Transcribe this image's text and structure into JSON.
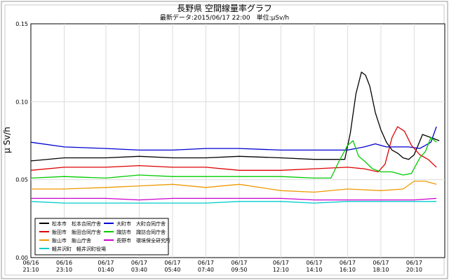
{
  "chart_data": {
    "type": "line",
    "title": "長野県 空間線量率グラフ",
    "subtitle": "最新データ:2015/06/17 22:00　単位:μSv/h",
    "ylabel": "μ Sv/h",
    "ylim": [
      0,
      0.15
    ],
    "y_ticks": [
      "0.00",
      "0.05",
      "0.10",
      "0.15"
    ],
    "y_tick_values": [
      0,
      0.05,
      0.1,
      0.15
    ],
    "x_ticks": [
      {
        "t": 0,
        "l1": "06/16",
        "l2": "21:10"
      },
      {
        "t": 120,
        "l1": "06/16",
        "l2": "23:10"
      },
      {
        "t": 270,
        "l1": "06/17",
        "l2": "01:40"
      },
      {
        "t": 390,
        "l1": "06/17",
        "l2": "03:40"
      },
      {
        "t": 510,
        "l1": "06/17",
        "l2": "05:40"
      },
      {
        "t": 630,
        "l1": "06/17",
        "l2": "07:40"
      },
      {
        "t": 750,
        "l1": "06/17",
        "l2": "09:50"
      },
      {
        "t": 900,
        "l1": "06/17",
        "l2": "12:10"
      },
      {
        "t": 1020,
        "l1": "06/17",
        "l2": "14:10"
      },
      {
        "t": 1140,
        "l1": "06/17",
        "l2": "16:10"
      },
      {
        "t": 1260,
        "l1": "06/17",
        "l2": "18:10"
      },
      {
        "t": 1380,
        "l1": "06/17",
        "l2": "20:10"
      }
    ],
    "x_range_minutes": [
      0,
      1490
    ],
    "grid": true,
    "legend_position": "bottom-left",
    "series": [
      {
        "name": "松本市　松本合同庁舎",
        "color": "#000000",
        "points": [
          [
            0,
            0.062
          ],
          [
            120,
            0.064
          ],
          [
            270,
            0.064
          ],
          [
            390,
            0.065
          ],
          [
            510,
            0.064
          ],
          [
            630,
            0.064
          ],
          [
            750,
            0.065
          ],
          [
            900,
            0.064
          ],
          [
            1020,
            0.063
          ],
          [
            1100,
            0.063
          ],
          [
            1130,
            0.063
          ],
          [
            1150,
            0.08
          ],
          [
            1170,
            0.105
          ],
          [
            1190,
            0.119
          ],
          [
            1205,
            0.117
          ],
          [
            1220,
            0.11
          ],
          [
            1240,
            0.093
          ],
          [
            1260,
            0.082
          ],
          [
            1280,
            0.074
          ],
          [
            1300,
            0.069
          ],
          [
            1320,
            0.067
          ],
          [
            1340,
            0.064
          ],
          [
            1360,
            0.063
          ],
          [
            1380,
            0.066
          ],
          [
            1410,
            0.079
          ],
          [
            1440,
            0.077
          ],
          [
            1470,
            0.075
          ]
        ]
      },
      {
        "name": "大町市　大町合同庁舎",
        "color": "#0000d0",
        "points": [
          [
            0,
            0.074
          ],
          [
            120,
            0.071
          ],
          [
            270,
            0.07
          ],
          [
            390,
            0.069
          ],
          [
            510,
            0.069
          ],
          [
            630,
            0.07
          ],
          [
            750,
            0.07
          ],
          [
            900,
            0.069
          ],
          [
            1020,
            0.069
          ],
          [
            1140,
            0.069
          ],
          [
            1200,
            0.071
          ],
          [
            1240,
            0.073
          ],
          [
            1280,
            0.071
          ],
          [
            1320,
            0.071
          ],
          [
            1360,
            0.071
          ],
          [
            1400,
            0.07
          ],
          [
            1420,
            0.072
          ],
          [
            1440,
            0.074
          ],
          [
            1460,
            0.084
          ]
        ]
      },
      {
        "name": "飯田市　飯田合同庁舎",
        "color": "#dd0000",
        "points": [
          [
            0,
            0.056
          ],
          [
            120,
            0.058
          ],
          [
            270,
            0.058
          ],
          [
            390,
            0.059
          ],
          [
            510,
            0.058
          ],
          [
            630,
            0.058
          ],
          [
            750,
            0.056
          ],
          [
            900,
            0.056
          ],
          [
            1020,
            0.057
          ],
          [
            1140,
            0.058
          ],
          [
            1200,
            0.057
          ],
          [
            1250,
            0.055
          ],
          [
            1275,
            0.06
          ],
          [
            1300,
            0.077
          ],
          [
            1320,
            0.084
          ],
          [
            1345,
            0.081
          ],
          [
            1370,
            0.072
          ],
          [
            1400,
            0.066
          ],
          [
            1430,
            0.063
          ],
          [
            1460,
            0.058
          ]
        ]
      },
      {
        "name": "諏訪市　諏訪合同庁舎",
        "color": "#00cc00",
        "points": [
          [
            0,
            0.051
          ],
          [
            120,
            0.052
          ],
          [
            270,
            0.051
          ],
          [
            390,
            0.053
          ],
          [
            510,
            0.052
          ],
          [
            630,
            0.052
          ],
          [
            750,
            0.052
          ],
          [
            900,
            0.052
          ],
          [
            1020,
            0.051
          ],
          [
            1080,
            0.051
          ],
          [
            1110,
            0.062
          ],
          [
            1140,
            0.072
          ],
          [
            1160,
            0.075
          ],
          [
            1180,
            0.065
          ],
          [
            1200,
            0.062
          ],
          [
            1230,
            0.057
          ],
          [
            1260,
            0.055
          ],
          [
            1300,
            0.055
          ],
          [
            1340,
            0.053
          ],
          [
            1370,
            0.054
          ],
          [
            1400,
            0.064
          ],
          [
            1420,
            0.068
          ],
          [
            1440,
            0.077
          ],
          [
            1460,
            0.074
          ]
        ]
      },
      {
        "name": "飯山市　飯山庁舎",
        "color": "#ee9900",
        "points": [
          [
            0,
            0.044
          ],
          [
            120,
            0.044
          ],
          [
            270,
            0.045
          ],
          [
            390,
            0.046
          ],
          [
            510,
            0.047
          ],
          [
            630,
            0.045
          ],
          [
            750,
            0.047
          ],
          [
            900,
            0.043
          ],
          [
            1020,
            0.042
          ],
          [
            1140,
            0.044
          ],
          [
            1260,
            0.043
          ],
          [
            1340,
            0.044
          ],
          [
            1380,
            0.049
          ],
          [
            1420,
            0.049
          ],
          [
            1460,
            0.047
          ]
        ]
      },
      {
        "name": "長野市　環境保全研究所",
        "color": "#cc00cc",
        "points": [
          [
            0,
            0.038
          ],
          [
            120,
            0.038
          ],
          [
            270,
            0.038
          ],
          [
            390,
            0.037
          ],
          [
            510,
            0.038
          ],
          [
            630,
            0.038
          ],
          [
            750,
            0.038
          ],
          [
            900,
            0.038
          ],
          [
            1020,
            0.037
          ],
          [
            1140,
            0.037
          ],
          [
            1260,
            0.037
          ],
          [
            1380,
            0.037
          ],
          [
            1460,
            0.038
          ]
        ]
      },
      {
        "name": "軽井沢町　軽井沢町役場",
        "color": "#00cccc",
        "points": [
          [
            0,
            0.036
          ],
          [
            120,
            0.035
          ],
          [
            270,
            0.035
          ],
          [
            390,
            0.035
          ],
          [
            510,
            0.035
          ],
          [
            630,
            0.035
          ],
          [
            750,
            0.036
          ],
          [
            900,
            0.036
          ],
          [
            1020,
            0.035
          ],
          [
            1140,
            0.036
          ],
          [
            1260,
            0.036
          ],
          [
            1380,
            0.036
          ],
          [
            1460,
            0.036
          ]
        ]
      }
    ]
  }
}
